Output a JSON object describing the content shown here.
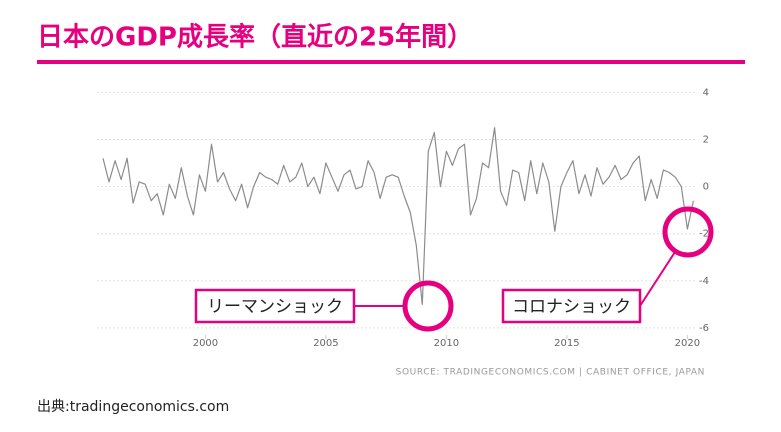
{
  "slide": {
    "title": "日本のGDP成長率（直近の25年間）",
    "credit": "出典:tradingeconomics.com"
  },
  "chart_data": {
    "type": "line",
    "source": "SOURCE: TRADINGECONOMICS.COM | CABINET OFFICE, JAPAN",
    "annotations": [
      "リーマンショック",
      "コロナショック"
    ],
    "color": "#8c8c8c",
    "x": [
      1995.75,
      1996,
      1996.25,
      1996.5,
      1996.75,
      1997,
      1997.25,
      1997.5,
      1997.75,
      1998,
      1998.25,
      1998.5,
      1998.75,
      1999,
      1999.25,
      1999.5,
      1999.75,
      2000,
      2000.25,
      2000.5,
      2000.75,
      2001,
      2001.25,
      2001.5,
      2001.75,
      2002,
      2002.25,
      2002.5,
      2002.75,
      2003,
      2003.25,
      2003.5,
      2003.75,
      2004,
      2004.25,
      2004.5,
      2004.75,
      2005,
      2005.25,
      2005.5,
      2005.75,
      2006,
      2006.25,
      2006.5,
      2006.75,
      2007,
      2007.25,
      2007.5,
      2007.75,
      2008,
      2008.25,
      2008.5,
      2008.75,
      2009,
      2009.25,
      2009.5,
      2009.75,
      2010,
      2010.25,
      2010.5,
      2010.75,
      2011,
      2011.25,
      2011.5,
      2011.75,
      2012,
      2012.25,
      2012.5,
      2012.75,
      2013,
      2013.25,
      2013.5,
      2013.75,
      2014,
      2014.25,
      2014.5,
      2014.75,
      2015,
      2015.25,
      2015.5,
      2015.75,
      2016,
      2016.25,
      2016.5,
      2016.75,
      2017,
      2017.25,
      2017.5,
      2017.75,
      2018,
      2018.25,
      2018.5,
      2018.75,
      2019,
      2019.25,
      2019.5,
      2019.75,
      2020,
      2020.25
    ],
    "values": [
      1.2,
      0.2,
      1.1,
      0.3,
      1.2,
      -0.7,
      0.2,
      0.1,
      -0.6,
      -0.3,
      -1.2,
      0.1,
      -0.5,
      0.8,
      -0.4,
      -1.2,
      0.5,
      -0.2,
      1.8,
      0.2,
      0.6,
      -0.1,
      -0.6,
      0.1,
      -0.9,
      0.0,
      0.6,
      0.4,
      0.3,
      0.1,
      0.9,
      0.2,
      0.4,
      1.0,
      0.0,
      0.4,
      -0.3,
      1.0,
      0.4,
      -0.2,
      0.5,
      0.7,
      -0.1,
      0.0,
      1.1,
      0.6,
      -0.5,
      0.4,
      0.5,
      0.4,
      -0.4,
      -1.1,
      -2.5,
      -5.0,
      1.5,
      2.3,
      0.0,
      1.5,
      0.9,
      1.6,
      1.8,
      -1.2,
      -0.5,
      1.0,
      0.8,
      2.5,
      -0.2,
      -0.8,
      0.7,
      0.6,
      -0.6,
      1.1,
      -0.3,
      1.0,
      0.2,
      -1.9,
      0.0,
      0.6,
      1.1,
      -0.3,
      0.5,
      -0.4,
      0.8,
      0.1,
      0.4,
      0.9,
      0.3,
      0.5,
      1.0,
      1.3,
      -0.6,
      0.3,
      -0.5,
      0.7,
      0.6,
      0.4,
      0.0,
      -1.8,
      -0.6
    ],
    "xlim": [
      1995.5,
      2020.4
    ],
    "xticks": [
      2000,
      2005,
      2010,
      2015,
      2020
    ],
    "ylim": [
      -6.3,
      4.1
    ],
    "yticks": [
      4,
      2,
      0,
      -2,
      -4,
      -6
    ],
    "grid": true
  }
}
